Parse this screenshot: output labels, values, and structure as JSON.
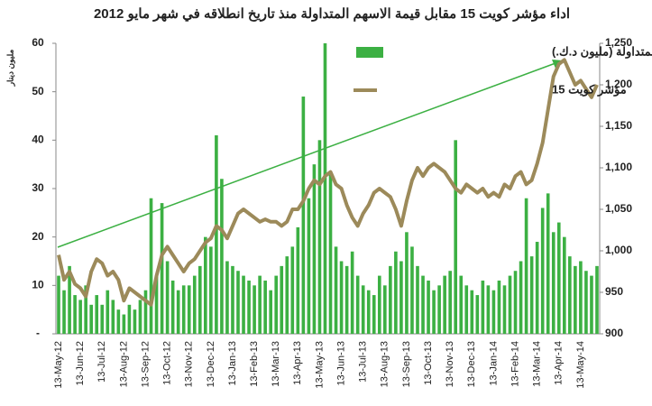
{
  "chart_data": {
    "type": "bar-line",
    "title": "اداء مؤشر كويت 15  مقابل قيمة الاسهم المتداولة منذ تاريخ انطلاقه في شهر مايو 2012",
    "y_label": "مليون دينار",
    "categories": [
      "13-May-12",
      null,
      null,
      null,
      "13-Jun-12",
      null,
      null,
      null,
      "13-Jul-12",
      null,
      null,
      null,
      "13-Aug-12",
      null,
      null,
      null,
      "13-Sep-12",
      null,
      null,
      null,
      "13-Oct-12",
      null,
      null,
      null,
      "13-Nov-12",
      null,
      null,
      null,
      "13-Dec-12",
      null,
      null,
      null,
      "13-Jan-13",
      null,
      null,
      null,
      "13-Feb-13",
      null,
      null,
      null,
      "13-Mar-13",
      null,
      null,
      null,
      "13-Apr-13",
      null,
      null,
      null,
      "13-May-13",
      null,
      null,
      null,
      "13-Jun-13",
      null,
      null,
      null,
      "13-Jul-13",
      null,
      null,
      null,
      "13-Aug-13",
      null,
      null,
      null,
      "13-Sep-13",
      null,
      null,
      null,
      "13-Oct-13",
      null,
      null,
      null,
      "13-Nov-13",
      null,
      null,
      null,
      "13-Dec-13",
      null,
      null,
      null,
      "13-Jan-14",
      null,
      null,
      null,
      "13-Feb-14",
      null,
      null,
      null,
      "13-Mar-14",
      null,
      null,
      null,
      "13-Apr-14",
      null,
      null,
      null,
      "13-May-14",
      null,
      null,
      null
    ],
    "series": [
      {
        "name": "القيمة المتداولة (مليون د.ك.)",
        "color": "#3cb043",
        "type": "bar",
        "values": [
          12,
          9,
          14,
          8,
          7,
          10,
          6,
          8,
          6,
          9,
          7,
          5,
          4,
          6,
          5,
          7,
          9,
          28,
          12,
          27,
          15,
          11,
          9,
          10,
          10,
          12,
          14,
          20,
          18,
          41,
          32,
          15,
          14,
          13,
          12,
          11,
          10,
          12,
          11,
          9,
          12,
          14,
          16,
          18,
          22,
          49,
          28,
          35,
          40,
          60,
          33,
          18,
          15,
          14,
          17,
          12,
          10,
          9,
          8,
          12,
          10,
          14,
          17,
          15,
          21,
          18,
          14,
          12,
          11,
          9,
          10,
          12,
          13,
          40,
          12,
          10,
          9,
          8,
          11,
          10,
          9,
          11,
          10,
          12,
          13,
          15,
          28,
          16,
          19,
          26,
          29,
          21,
          23,
          20,
          16,
          14,
          15,
          13,
          12,
          14
        ]
      },
      {
        "name": "مؤشر كويت 15",
        "color": "#9c8a5a",
        "type": "line",
        "axis": "y2",
        "values": [
          995,
          965,
          975,
          960,
          955,
          945,
          975,
          990,
          985,
          970,
          975,
          965,
          940,
          955,
          950,
          945,
          940,
          935,
          970,
          995,
          1005,
          995,
          985,
          975,
          985,
          990,
          1000,
          1010,
          1015,
          1030,
          1025,
          1015,
          1030,
          1045,
          1050,
          1045,
          1040,
          1035,
          1038,
          1035,
          1035,
          1030,
          1035,
          1050,
          1050,
          1060,
          1075,
          1085,
          1080,
          1090,
          1095,
          1080,
          1075,
          1055,
          1040,
          1030,
          1045,
          1055,
          1070,
          1075,
          1070,
          1065,
          1050,
          1030,
          1060,
          1085,
          1100,
          1090,
          1100,
          1105,
          1100,
          1095,
          1085,
          1075,
          1070,
          1080,
          1075,
          1070,
          1075,
          1065,
          1070,
          1065,
          1080,
          1075,
          1090,
          1095,
          1080,
          1085,
          1105,
          1130,
          1170,
          1210,
          1225,
          1230,
          1215,
          1200,
          1205,
          1195,
          1185,
          1200
        ]
      }
    ],
    "ylim": [
      0,
      60
    ],
    "yticks": [
      {
        "value": 0,
        "label": "-"
      },
      10,
      20,
      30,
      40,
      50,
      60
    ],
    "y2lim": [
      900,
      1250
    ],
    "y2ticks": [
      900,
      950,
      {
        "value": 1000,
        "label": "1,000"
      },
      {
        "value": 1050,
        "label": "1,050"
      },
      {
        "value": 1100,
        "label": "1,100"
      },
      {
        "value": 1150,
        "label": "1,150"
      },
      {
        "value": 1200,
        "label": "1,200"
      },
      {
        "value": 1250,
        "label": "1,250"
      }
    ]
  }
}
